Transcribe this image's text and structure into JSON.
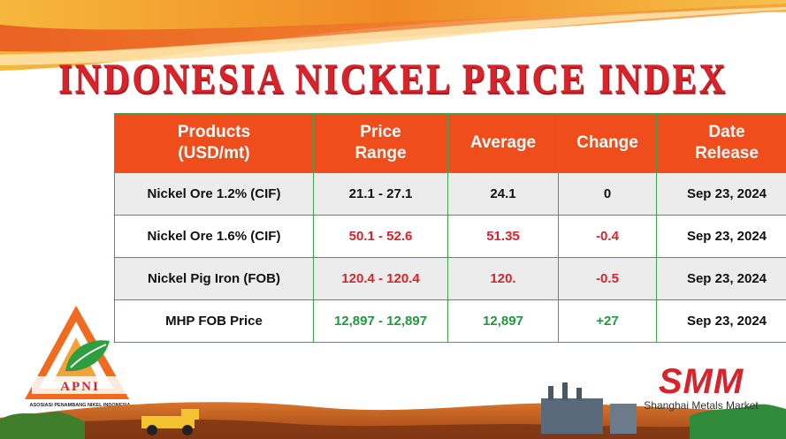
{
  "title": "INDONESIA NICKEL PRICE INDEX",
  "table": {
    "headers": [
      [
        "Products",
        "(USD/mt)"
      ],
      [
        "Price",
        "Range"
      ],
      [
        "Average"
      ],
      [
        "Change"
      ],
      [
        "Date",
        "Release"
      ]
    ],
    "rows": [
      {
        "product": "Nickel Ore 1.2% (CIF)",
        "range": "21.1 - 27.1",
        "average": "24.1",
        "change": "0",
        "date": "Sep 23, 2024",
        "trend": "neutral"
      },
      {
        "product": "Nickel Ore 1.6% (CIF)",
        "range": "50.1 - 52.6",
        "average": "51.35",
        "change": "-0.4",
        "date": "Sep 23, 2024",
        "trend": "down"
      },
      {
        "product": "Nickel Pig Iron (FOB)",
        "range": "120.4 - 120.4",
        "average": "120.",
        "change": "-0.5",
        "date": "Sep 23, 2024",
        "trend": "down"
      },
      {
        "product": "MHP FOB Price",
        "range": "12,897 - 12,897",
        "average": "12,897",
        "change": "+27",
        "date": "Sep 23, 2024",
        "trend": "up"
      }
    ]
  },
  "logos": {
    "apni_name": "APNI",
    "apni_tagline": "ASOSIASI PENAMBANG NIKEL INDONESIA",
    "smm_name": "SMM",
    "smm_tagline": "Shanghai Metals Market"
  },
  "colors": {
    "header_bg": "#f04d1c",
    "title_red": "#d8232a",
    "border_green": "#3fa34d",
    "down": "#d8232a",
    "up": "#1e9a3a"
  }
}
